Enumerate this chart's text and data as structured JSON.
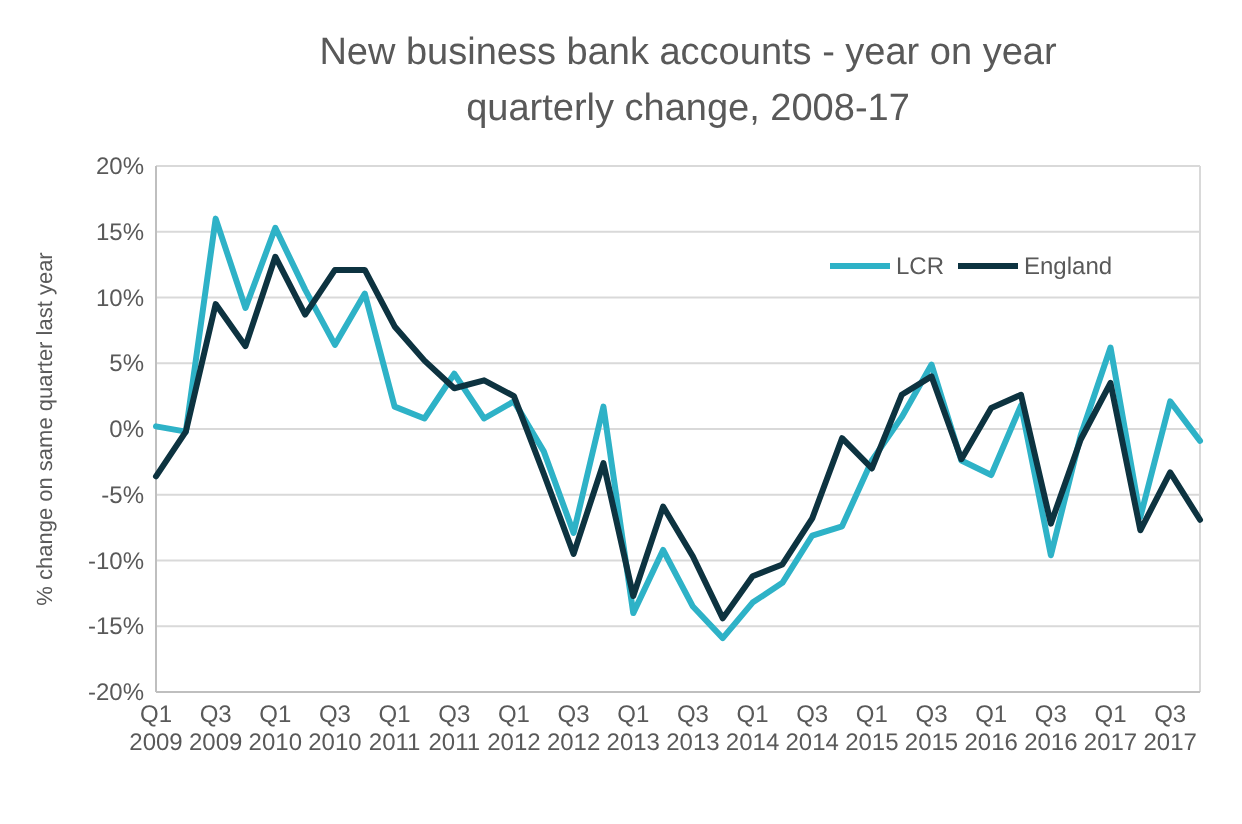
{
  "chart_data": {
    "type": "line",
    "title": "New business bank accounts - year on year quarterly change, 2008-17",
    "ylabel": "% change on same quarter last year",
    "categories": [
      "Q1 2009",
      null,
      "Q3 2009",
      null,
      "Q1 2010",
      null,
      "Q3 2010",
      null,
      "Q1 2011",
      null,
      "Q3 2011",
      null,
      "Q1 2012",
      null,
      "Q3 2012",
      null,
      "Q1 2013",
      null,
      "Q3 2013",
      null,
      "Q1 2014",
      null,
      "Q3 2014",
      null,
      "Q1 2015",
      null,
      "Q3 2015",
      null,
      "Q1 2016",
      null,
      "Q3 2016",
      null,
      "Q1 2017",
      null,
      "Q3 2017",
      null
    ],
    "series": [
      {
        "name": "LCR",
        "color": "#2eb2c7",
        "values": [
          0.2,
          -0.2,
          16.0,
          9.2,
          15.3,
          10.6,
          6.4,
          10.3,
          1.7,
          0.8,
          4.2,
          0.8,
          2.1,
          -1.7,
          -7.9,
          1.7,
          -14.0,
          -9.2,
          -13.5,
          -15.9,
          -13.2,
          -11.7,
          -8.1,
          -7.4,
          -2.4,
          0.9,
          4.9,
          -2.4,
          -3.5,
          1.8,
          -9.6,
          -0.5,
          6.2,
          -6.7,
          2.1,
          -0.9
        ]
      },
      {
        "name": "England",
        "color": "#0d3340",
        "values": [
          -3.6,
          -0.2,
          9.5,
          6.3,
          13.1,
          8.7,
          12.1,
          12.1,
          7.8,
          5.2,
          3.1,
          3.7,
          2.5,
          -3.4,
          -9.5,
          -2.6,
          -12.7,
          -5.9,
          -9.7,
          -14.4,
          -11.2,
          -10.3,
          -6.8,
          -0.7,
          -3.0,
          2.6,
          4.0,
          -2.3,
          1.6,
          2.6,
          -7.2,
          -0.8,
          3.5,
          -7.7,
          -3.3,
          -6.9
        ]
      }
    ],
    "ylim": [
      -20,
      20
    ],
    "yticks": [
      {
        "value": -20,
        "label": "-20%"
      },
      {
        "value": -15,
        "label": "-15%"
      },
      {
        "value": -10,
        "label": "-10%"
      },
      {
        "value": -5,
        "label": "-5%"
      },
      {
        "value": 0,
        "label": "0%"
      },
      {
        "value": 5,
        "label": "5%"
      },
      {
        "value": 10,
        "label": "10%"
      },
      {
        "value": 15,
        "label": "15%"
      },
      {
        "value": 20,
        "label": "20%"
      }
    ],
    "grid": "y",
    "legend": "top right",
    "marker": "none",
    "line_style": "solid"
  }
}
